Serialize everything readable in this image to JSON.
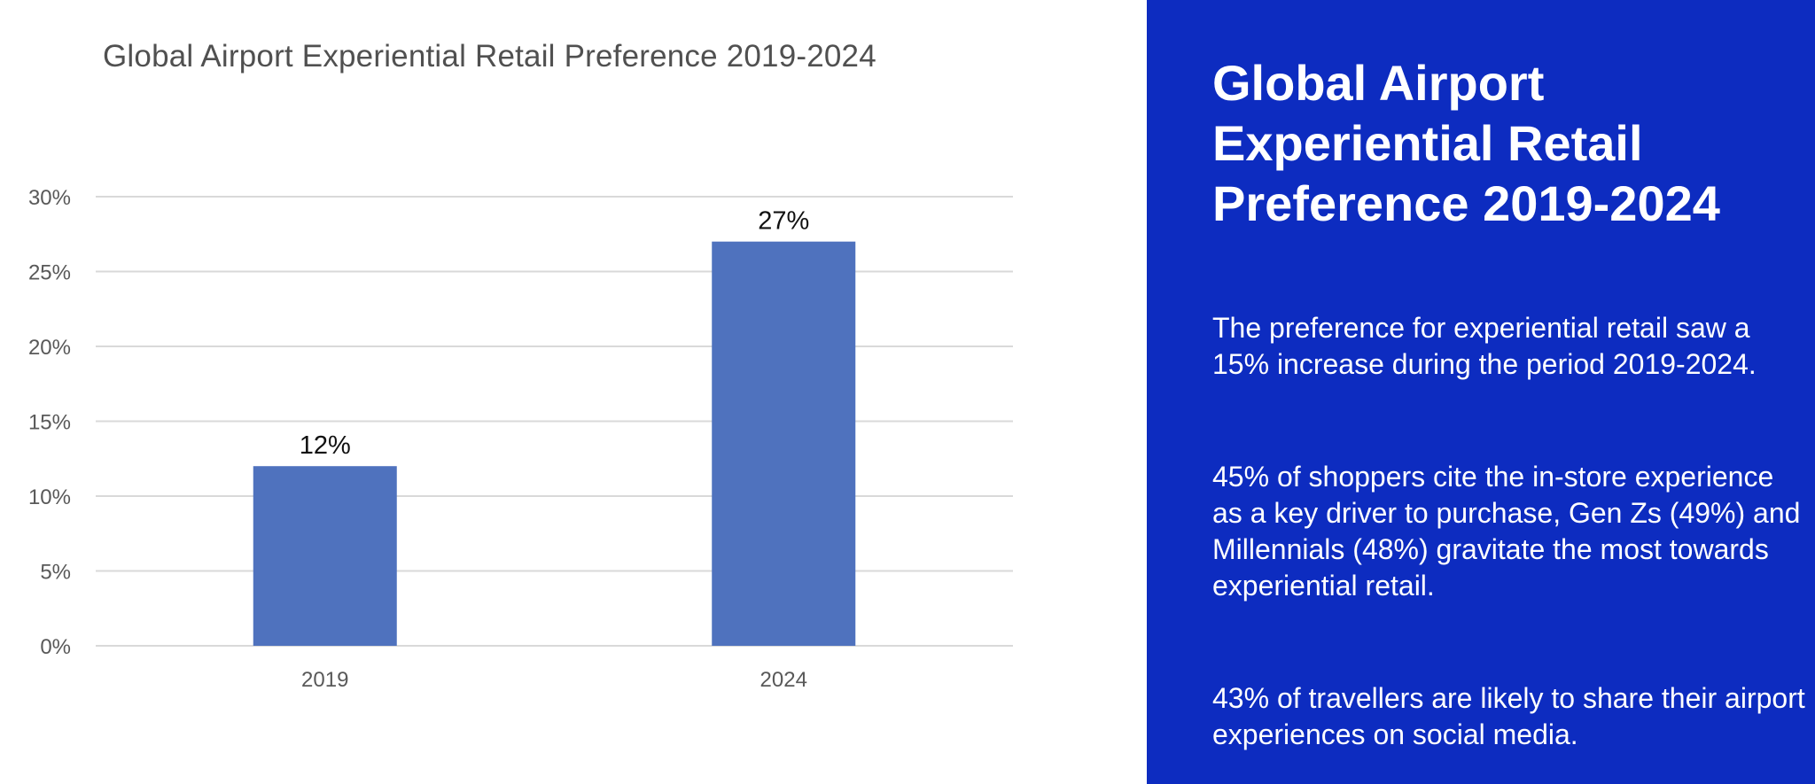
{
  "chart_data": {
    "type": "bar",
    "title": "Global Airport Experiential Retail Preference 2019-2024",
    "categories": [
      "2019",
      "2024"
    ],
    "values": [
      12,
      27
    ],
    "value_labels": [
      "12%",
      "27%"
    ],
    "xlabel": "",
    "ylabel": "",
    "ylim": [
      0,
      30
    ],
    "yticks": [
      0,
      5,
      10,
      15,
      20,
      25,
      30
    ],
    "ytick_labels": [
      "0%",
      "5%",
      "10%",
      "15%",
      "20%",
      "25%",
      "30%"
    ],
    "grid": true,
    "bar_color": "#4f72be"
  },
  "panel": {
    "title": "Global Airport Experiential Retail Preference 2019-2024",
    "paragraph_1": "The preference for experiential retail saw a 15% increase during the period 2019-2024.",
    "paragraph_2": "45% of shoppers cite the in-store experience as a key driver to purchase, Gen Zs (49%) and Millennials (48%) gravitate the most towards experiential retail.",
    "paragraph_3": "43% of travellers are likely to share their airport experiences on social media."
  },
  "colors": {
    "panel_background": "#0d2cc0",
    "bar": "#4f72be",
    "gridline": "#d9d9d9",
    "axis_text": "#595959"
  }
}
